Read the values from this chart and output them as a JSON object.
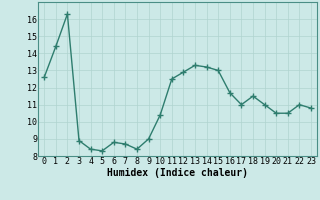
{
  "x": [
    0,
    1,
    2,
    3,
    4,
    5,
    6,
    7,
    8,
    9,
    10,
    11,
    12,
    13,
    14,
    15,
    16,
    17,
    18,
    19,
    20,
    21,
    22,
    23
  ],
  "y": [
    12.6,
    14.4,
    16.3,
    8.9,
    8.4,
    8.3,
    8.8,
    8.7,
    8.4,
    9.0,
    10.4,
    12.5,
    12.9,
    13.3,
    13.2,
    13.0,
    11.7,
    11.0,
    11.5,
    11.0,
    10.5,
    10.5,
    11.0,
    10.8
  ],
  "line_color": "#2e7d6e",
  "marker": "+",
  "marker_size": 4,
  "bg_color": "#cce9e7",
  "grid_color": "#b0d4d0",
  "xlabel": "Humidex (Indice chaleur)",
  "ylim": [
    8,
    17
  ],
  "xlim": [
    -0.5,
    23.5
  ],
  "yticks": [
    8,
    9,
    10,
    11,
    12,
    13,
    14,
    15,
    16
  ],
  "xticks": [
    0,
    1,
    2,
    3,
    4,
    5,
    6,
    7,
    8,
    9,
    10,
    11,
    12,
    13,
    14,
    15,
    16,
    17,
    18,
    19,
    20,
    21,
    22,
    23
  ],
  "xlabel_fontsize": 7,
  "tick_fontsize": 6,
  "line_width": 1.0
}
